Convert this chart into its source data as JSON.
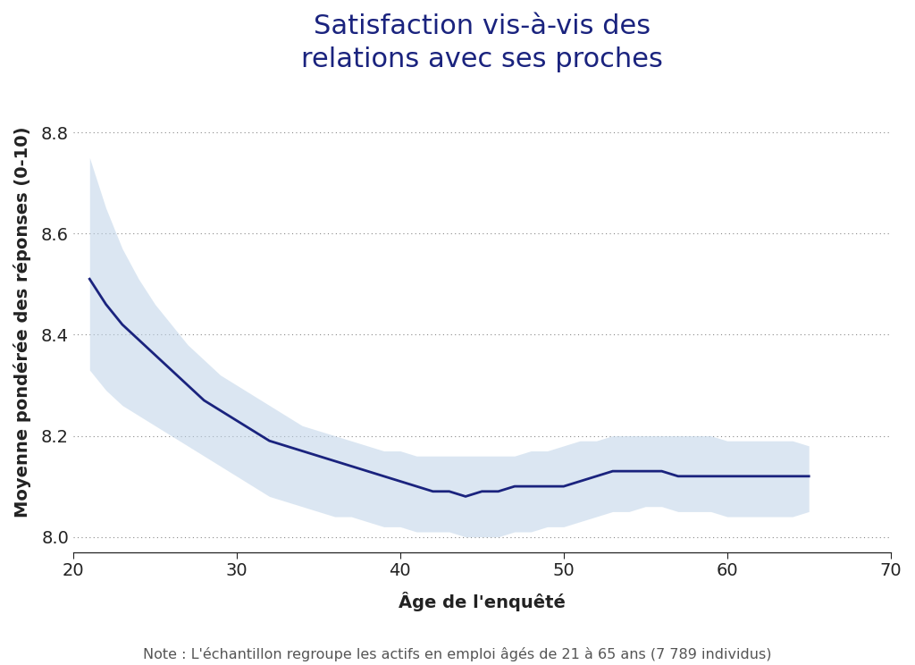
{
  "title": "Satisfaction vis-à-vis des\nrelations avec ses proches",
  "xlabel": "Âge de l'enquêté",
  "ylabel": "Moyenne pondérée des réponses (0-10)",
  "note": "Note : L'échantillon regroupe les actifs en emploi âgés de 21 à 65 ans (7 789 individus)",
  "line_color": "#1a237e",
  "ci_color": "#bed3e8",
  "background_color": "#ffffff",
  "xlim": [
    20,
    70
  ],
  "ylim": [
    7.97,
    8.88
  ],
  "xticks": [
    20,
    30,
    40,
    50,
    60,
    70
  ],
  "yticks": [
    8.0,
    8.2,
    8.4,
    8.6,
    8.8
  ],
  "x": [
    21,
    22,
    23,
    24,
    25,
    26,
    27,
    28,
    29,
    30,
    31,
    32,
    33,
    34,
    35,
    36,
    37,
    38,
    39,
    40,
    41,
    42,
    43,
    44,
    45,
    46,
    47,
    48,
    49,
    50,
    51,
    52,
    53,
    54,
    55,
    56,
    57,
    58,
    59,
    60,
    61,
    62,
    63,
    64,
    65
  ],
  "y": [
    8.51,
    8.46,
    8.42,
    8.39,
    8.36,
    8.33,
    8.3,
    8.27,
    8.25,
    8.23,
    8.21,
    8.19,
    8.18,
    8.17,
    8.16,
    8.15,
    8.14,
    8.13,
    8.12,
    8.11,
    8.1,
    8.09,
    8.09,
    8.08,
    8.09,
    8.09,
    8.1,
    8.1,
    8.1,
    8.1,
    8.11,
    8.12,
    8.13,
    8.13,
    8.13,
    8.13,
    8.12,
    8.12,
    8.12,
    8.12,
    8.12,
    8.12,
    8.12,
    8.12,
    8.12
  ],
  "ci_upper": [
    8.75,
    8.65,
    8.57,
    8.51,
    8.46,
    8.42,
    8.38,
    8.35,
    8.32,
    8.3,
    8.28,
    8.26,
    8.24,
    8.22,
    8.21,
    8.2,
    8.19,
    8.18,
    8.17,
    8.17,
    8.16,
    8.16,
    8.16,
    8.16,
    8.16,
    8.16,
    8.16,
    8.17,
    8.17,
    8.18,
    8.19,
    8.19,
    8.2,
    8.2,
    8.2,
    8.2,
    8.2,
    8.2,
    8.2,
    8.19,
    8.19,
    8.19,
    8.19,
    8.19,
    8.18
  ],
  "ci_lower": [
    8.33,
    8.29,
    8.26,
    8.24,
    8.22,
    8.2,
    8.18,
    8.16,
    8.14,
    8.12,
    8.1,
    8.08,
    8.07,
    8.06,
    8.05,
    8.04,
    8.04,
    8.03,
    8.02,
    8.02,
    8.01,
    8.01,
    8.01,
    8.0,
    8.0,
    8.0,
    8.01,
    8.01,
    8.02,
    8.02,
    8.03,
    8.04,
    8.05,
    8.05,
    8.06,
    8.06,
    8.05,
    8.05,
    8.05,
    8.04,
    8.04,
    8.04,
    8.04,
    8.04,
    8.05
  ],
  "title_fontsize": 22,
  "label_fontsize": 14,
  "tick_fontsize": 14,
  "note_fontsize": 11.5,
  "line_width": 2.0
}
